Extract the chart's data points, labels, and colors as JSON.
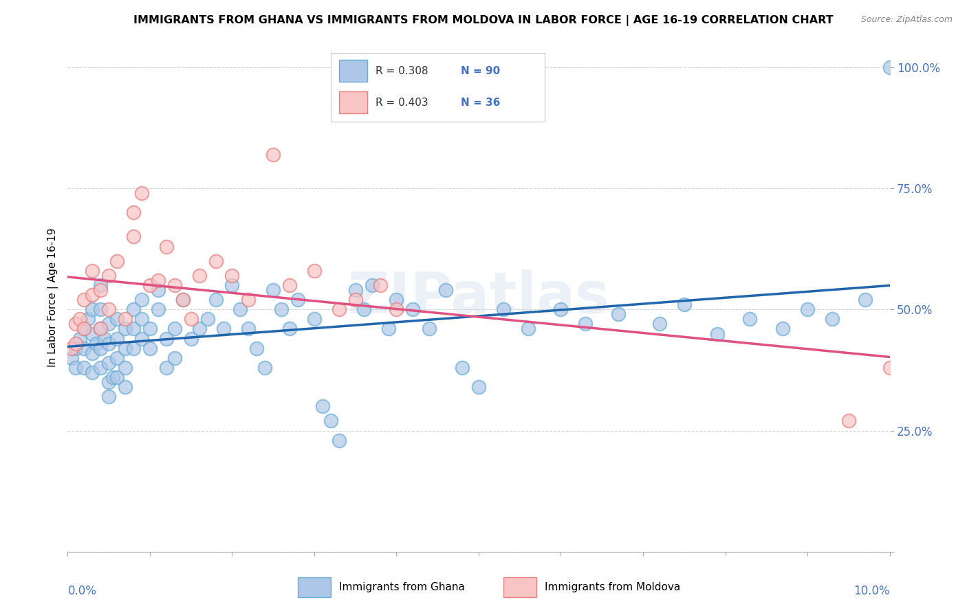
{
  "title": "IMMIGRANTS FROM GHANA VS IMMIGRANTS FROM MOLDOVA IN LABOR FORCE | AGE 16-19 CORRELATION CHART",
  "source": "Source: ZipAtlas.com",
  "ylabel": "In Labor Force | Age 16-19",
  "legend_ghana": "Immigrants from Ghana",
  "legend_moldova": "Immigrants from Moldova",
  "r_ghana": "0.308",
  "n_ghana": "90",
  "r_moldova": "0.403",
  "n_moldova": "36",
  "color_ghana_face": "#aec6e8",
  "color_ghana_edge": "#6baed6",
  "color_moldova_face": "#f9c4c4",
  "color_moldova_edge": "#e88080",
  "color_trendline_ghana": "#2166ac",
  "color_trendline_moldova": "#e05080",
  "color_legend_r": "#333333",
  "color_legend_n": "#4472c4",
  "watermark": "ZIPatlas",
  "xmin": 0.0,
  "xmax": 0.1,
  "ymin": 0.0,
  "ymax": 1.05,
  "yticks": [
    0.0,
    0.25,
    0.5,
    0.75,
    1.0
  ],
  "ytick_labels": [
    "",
    "25.0%",
    "50.0%",
    "75.0%",
    "100.0%"
  ],
  "ghana_x": [
    0.0005,
    0.001,
    0.001,
    0.0015,
    0.002,
    0.002,
    0.002,
    0.0025,
    0.003,
    0.003,
    0.003,
    0.003,
    0.0035,
    0.004,
    0.004,
    0.004,
    0.004,
    0.004,
    0.0045,
    0.005,
    0.005,
    0.005,
    0.005,
    0.005,
    0.0055,
    0.006,
    0.006,
    0.006,
    0.006,
    0.007,
    0.007,
    0.007,
    0.007,
    0.008,
    0.008,
    0.008,
    0.009,
    0.009,
    0.009,
    0.01,
    0.01,
    0.011,
    0.011,
    0.012,
    0.012,
    0.013,
    0.013,
    0.014,
    0.015,
    0.016,
    0.017,
    0.018,
    0.019,
    0.02,
    0.021,
    0.022,
    0.023,
    0.024,
    0.025,
    0.026,
    0.027,
    0.028,
    0.03,
    0.031,
    0.032,
    0.033,
    0.035,
    0.036,
    0.037,
    0.039,
    0.04,
    0.042,
    0.044,
    0.046,
    0.048,
    0.05,
    0.053,
    0.056,
    0.06,
    0.063,
    0.067,
    0.072,
    0.075,
    0.079,
    0.083,
    0.087,
    0.09,
    0.093,
    0.097,
    0.1
  ],
  "ghana_y": [
    0.4,
    0.42,
    0.38,
    0.44,
    0.46,
    0.42,
    0.38,
    0.48,
    0.5,
    0.45,
    0.41,
    0.37,
    0.43,
    0.55,
    0.5,
    0.46,
    0.42,
    0.38,
    0.44,
    0.47,
    0.43,
    0.39,
    0.35,
    0.32,
    0.36,
    0.48,
    0.44,
    0.4,
    0.36,
    0.46,
    0.42,
    0.38,
    0.34,
    0.5,
    0.46,
    0.42,
    0.52,
    0.48,
    0.44,
    0.46,
    0.42,
    0.54,
    0.5,
    0.38,
    0.44,
    0.46,
    0.4,
    0.52,
    0.44,
    0.46,
    0.48,
    0.52,
    0.46,
    0.55,
    0.5,
    0.46,
    0.42,
    0.38,
    0.54,
    0.5,
    0.46,
    0.52,
    0.48,
    0.3,
    0.27,
    0.23,
    0.54,
    0.5,
    0.55,
    0.46,
    0.52,
    0.5,
    0.46,
    0.54,
    0.38,
    0.34,
    0.5,
    0.46,
    0.5,
    0.47,
    0.49,
    0.47,
    0.51,
    0.45,
    0.48,
    0.46,
    0.5,
    0.48,
    0.52,
    1.0
  ],
  "moldova_x": [
    0.0005,
    0.001,
    0.001,
    0.0015,
    0.002,
    0.002,
    0.003,
    0.003,
    0.004,
    0.004,
    0.005,
    0.005,
    0.006,
    0.007,
    0.008,
    0.008,
    0.009,
    0.01,
    0.011,
    0.012,
    0.013,
    0.014,
    0.015,
    0.016,
    0.018,
    0.02,
    0.022,
    0.025,
    0.027,
    0.03,
    0.033,
    0.035,
    0.038,
    0.04,
    0.095,
    0.1
  ],
  "moldova_y": [
    0.42,
    0.47,
    0.43,
    0.48,
    0.52,
    0.46,
    0.58,
    0.53,
    0.46,
    0.54,
    0.57,
    0.5,
    0.6,
    0.48,
    0.7,
    0.65,
    0.74,
    0.55,
    0.56,
    0.63,
    0.55,
    0.52,
    0.48,
    0.57,
    0.6,
    0.57,
    0.52,
    0.82,
    0.55,
    0.58,
    0.5,
    0.52,
    0.55,
    0.5,
    0.27,
    0.38
  ]
}
